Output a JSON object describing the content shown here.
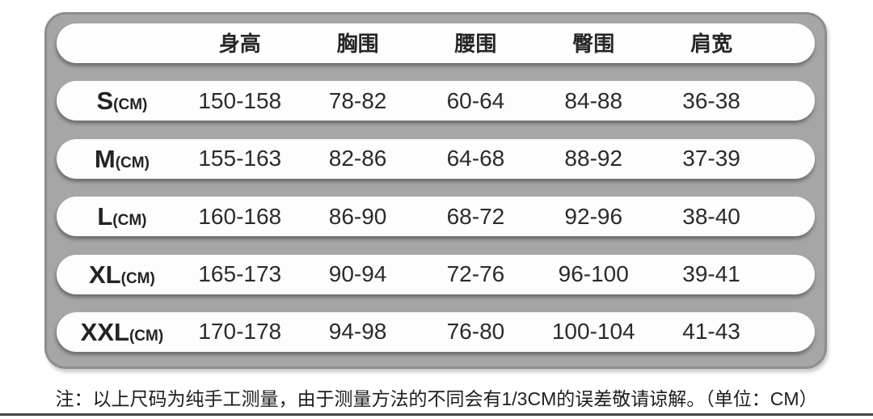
{
  "chart_data": {
    "type": "table",
    "columns": [
      "身高",
      "胸围",
      "腰围",
      "臀围",
      "肩宽"
    ],
    "rows": [
      {
        "size": "S",
        "size_unit": "(CM)",
        "values": [
          "150-158",
          "78-82",
          "60-64",
          "84-88",
          "36-38"
        ]
      },
      {
        "size": "M",
        "size_unit": "(CM)",
        "values": [
          "155-163",
          "82-86",
          "64-68",
          "88-92",
          "37-39"
        ]
      },
      {
        "size": "L",
        "size_unit": "(CM)",
        "values": [
          "160-168",
          "86-90",
          "68-72",
          "92-96",
          "38-40"
        ]
      },
      {
        "size": "XL",
        "size_unit": "(CM)",
        "values": [
          "165-173",
          "90-94",
          "72-76",
          "96-100",
          "39-41"
        ]
      },
      {
        "size": "XXL",
        "size_unit": "(CM)",
        "values": [
          "170-178",
          "94-98",
          "76-80",
          "100-104",
          "41-43"
        ]
      }
    ],
    "note": "注：以上尺码为纯手工测量，由于测量方法的不同会有1/3CM的误差敬请谅解。（单位：CM）",
    "unit_label": "CM"
  },
  "colors": {
    "panel_bg": "#a6a6a6",
    "panel_border": "#8d8d8d",
    "row_bg": "#fdfdfd",
    "text": "#2b2b2b",
    "divider": "#434343",
    "page_bg": "#ffffff"
  }
}
